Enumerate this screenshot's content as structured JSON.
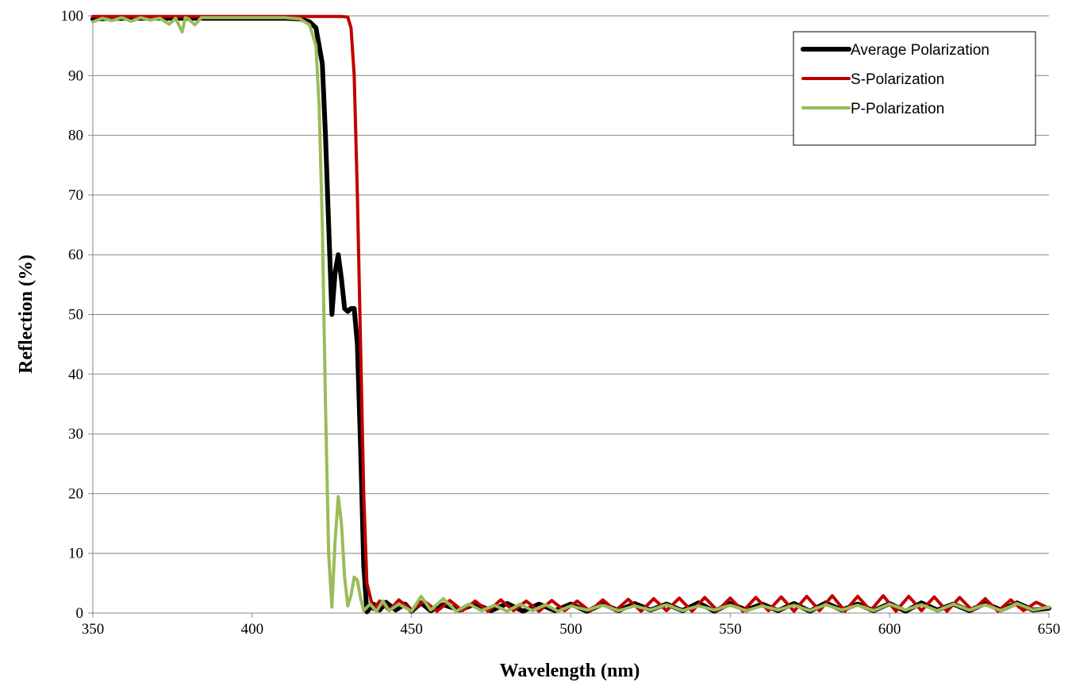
{
  "chart_data": {
    "type": "line",
    "title": "",
    "xlabel": "Wavelength (nm)",
    "ylabel": "Reflection (%)",
    "xlim": [
      350,
      650
    ],
    "ylim": [
      0,
      100
    ],
    "x_ticks": [
      350,
      400,
      450,
      500,
      550,
      600,
      650
    ],
    "y_ticks": [
      0,
      10,
      20,
      30,
      40,
      50,
      60,
      70,
      80,
      90,
      100
    ],
    "grid": "horizontal",
    "legend_position": "top-right",
    "series": [
      {
        "name": "Average Polarization",
        "color": "#000000",
        "x": [
          350,
          360,
          370,
          380,
          390,
          400,
          410,
          415,
          418,
          420,
          422,
          423,
          424,
          425,
          426,
          427,
          428,
          429,
          430,
          431,
          432,
          433,
          434,
          435,
          436,
          438,
          440,
          442,
          445,
          448,
          450,
          453,
          456,
          460,
          465,
          470,
          475,
          480,
          485,
          490,
          495,
          500,
          505,
          510,
          515,
          520,
          525,
          530,
          535,
          540,
          545,
          550,
          555,
          560,
          565,
          570,
          575,
          580,
          585,
          590,
          595,
          600,
          605,
          610,
          615,
          620,
          625,
          630,
          635,
          640,
          645,
          650
        ],
        "y": [
          99.5,
          99.6,
          99.6,
          99.6,
          99.6,
          99.6,
          99.6,
          99.5,
          99.0,
          98.0,
          92.0,
          80.0,
          65.0,
          50.0,
          57.0,
          60.0,
          56.0,
          51.0,
          50.5,
          51.0,
          51.0,
          45.0,
          28.0,
          8.0,
          0.2,
          1.5,
          0.5,
          1.8,
          0.5,
          1.5,
          0.3,
          1.7,
          0.4,
          1.4,
          0.5,
          1.5,
          0.4,
          1.6,
          0.3,
          1.5,
          0.4,
          1.5,
          0.3,
          1.5,
          0.4,
          1.6,
          0.5,
          1.5,
          0.4,
          1.7,
          0.3,
          1.6,
          0.5,
          1.5,
          0.4,
          1.6,
          0.3,
          1.7,
          0.5,
          1.5,
          0.4,
          1.6,
          0.3,
          1.7,
          0.5,
          1.5,
          0.4,
          1.6,
          0.5,
          1.7,
          0.5,
          0.8
        ]
      },
      {
        "name": "S-Polarization",
        "color": "#c00000",
        "x": [
          350,
          360,
          370,
          380,
          390,
          400,
          410,
          420,
          425,
          428,
          430,
          431,
          432,
          433,
          434,
          435,
          436,
          438,
          440,
          443,
          446,
          450,
          454,
          458,
          462,
          466,
          470,
          474,
          478,
          482,
          486,
          490,
          494,
          498,
          502,
          506,
          510,
          514,
          518,
          522,
          526,
          530,
          534,
          538,
          542,
          546,
          550,
          554,
          558,
          562,
          566,
          570,
          574,
          578,
          582,
          586,
          590,
          594,
          598,
          602,
          606,
          610,
          614,
          618,
          622,
          626,
          630,
          634,
          638,
          642,
          646,
          650
        ],
        "y": [
          99.9,
          99.9,
          99.9,
          99.9,
          99.9,
          99.9,
          99.9,
          99.9,
          99.9,
          99.9,
          99.8,
          98.0,
          90.0,
          70.0,
          45.0,
          20.0,
          5.0,
          0.6,
          2.0,
          0.4,
          2.2,
          0.5,
          2.0,
          0.3,
          2.1,
          0.4,
          2.0,
          0.3,
          2.2,
          0.4,
          2.0,
          0.3,
          2.1,
          0.4,
          2.0,
          0.3,
          2.2,
          0.4,
          2.3,
          0.3,
          2.4,
          0.4,
          2.5,
          0.3,
          2.6,
          0.4,
          2.5,
          0.3,
          2.6,
          0.4,
          2.7,
          0.3,
          2.8,
          0.4,
          2.9,
          0.3,
          2.8,
          0.4,
          2.9,
          0.3,
          2.8,
          0.4,
          2.7,
          0.3,
          2.6,
          0.4,
          2.4,
          0.3,
          2.2,
          0.4,
          1.8,
          0.8
        ]
      },
      {
        "name": "P-Polarization",
        "color": "#9bbb59",
        "x": [
          350,
          353,
          356,
          359,
          362,
          365,
          368,
          371,
          374,
          376,
          378,
          379,
          380,
          382,
          384,
          390,
          400,
          410,
          415,
          418,
          420,
          421,
          422,
          423,
          424,
          425,
          426,
          427,
          428,
          429,
          430,
          431,
          432,
          433,
          434,
          435,
          437,
          439,
          441,
          443,
          446,
          450,
          453,
          456,
          460,
          464,
          468,
          472,
          476,
          480,
          484,
          488,
          492,
          496,
          500,
          505,
          510,
          515,
          520,
          525,
          530,
          535,
          540,
          545,
          550,
          555,
          560,
          565,
          570,
          575,
          580,
          585,
          590,
          595,
          600,
          605,
          610,
          615,
          620,
          625,
          630,
          635,
          640,
          645,
          650
        ],
        "y": [
          99.0,
          99.6,
          99.2,
          99.7,
          99.1,
          99.7,
          99.3,
          99.6,
          98.6,
          99.6,
          97.3,
          99.7,
          99.5,
          98.5,
          99.7,
          99.7,
          99.7,
          99.7,
          99.5,
          98.5,
          95.0,
          85.0,
          65.0,
          35.0,
          10.0,
          1.0,
          12.0,
          19.5,
          15.0,
          6.0,
          1.2,
          3.0,
          6.0,
          5.5,
          2.5,
          0.4,
          1.5,
          0.3,
          2.0,
          0.4,
          1.5,
          0.3,
          2.8,
          0.5,
          2.4,
          0.3,
          1.5,
          0.4,
          1.3,
          0.3,
          1.5,
          0.4,
          1.4,
          0.3,
          1.2,
          0.5,
          1.3,
          0.4,
          1.2,
          0.5,
          1.4,
          0.4,
          1.2,
          0.5,
          1.3,
          0.4,
          1.2,
          0.5,
          1.3,
          0.4,
          1.4,
          0.5,
          1.3,
          0.4,
          1.5,
          0.5,
          1.4,
          0.4,
          1.5,
          0.5,
          1.4,
          0.4,
          1.6,
          0.5,
          1.0
        ]
      }
    ]
  }
}
